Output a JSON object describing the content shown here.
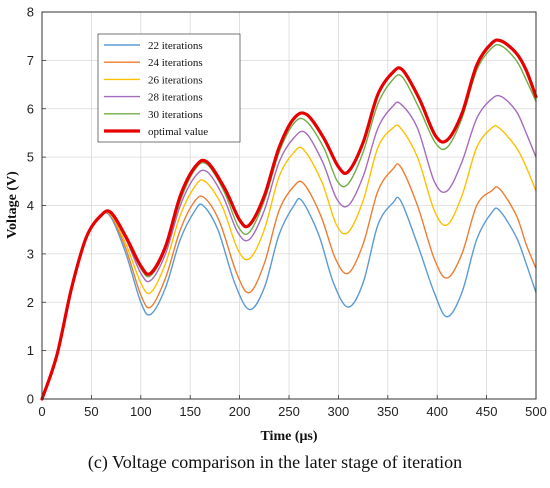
{
  "chart_data": {
    "type": "line",
    "xlabel": "Time (μs)",
    "ylabel": "Voltage (V)",
    "xlim": [
      0,
      500
    ],
    "ylim": [
      0,
      8
    ],
    "xticks": [
      "0",
      "50",
      "100",
      "150",
      "200",
      "250",
      "300",
      "350",
      "400",
      "450",
      "500"
    ],
    "yticks": [
      "0",
      "1",
      "2",
      "3",
      "4",
      "5",
      "6",
      "7",
      "8"
    ],
    "grid": true,
    "legend_position": "top-left",
    "series": [
      {
        "name": "22 iterations",
        "color": "#5b9bd5",
        "width": 1.4,
        "points": [
          [
            0,
            0
          ],
          [
            15,
            0.9
          ],
          [
            30,
            2.3
          ],
          [
            45,
            3.35
          ],
          [
            60,
            3.8
          ],
          [
            70,
            3.75
          ],
          [
            85,
            3.0
          ],
          [
            100,
            2.0
          ],
          [
            110,
            1.75
          ],
          [
            125,
            2.3
          ],
          [
            140,
            3.3
          ],
          [
            155,
            3.9
          ],
          [
            163,
            4.0
          ],
          [
            178,
            3.5
          ],
          [
            195,
            2.4
          ],
          [
            210,
            1.85
          ],
          [
            225,
            2.3
          ],
          [
            240,
            3.4
          ],
          [
            255,
            4.0
          ],
          [
            263,
            4.1
          ],
          [
            280,
            3.4
          ],
          [
            295,
            2.4
          ],
          [
            310,
            1.9
          ],
          [
            325,
            2.4
          ],
          [
            340,
            3.6
          ],
          [
            355,
            4.05
          ],
          [
            363,
            4.1
          ],
          [
            380,
            3.2
          ],
          [
            397,
            2.2
          ],
          [
            410,
            1.7
          ],
          [
            425,
            2.2
          ],
          [
            440,
            3.3
          ],
          [
            455,
            3.85
          ],
          [
            463,
            3.9
          ],
          [
            480,
            3.35
          ],
          [
            490,
            2.8
          ],
          [
            500,
            2.2
          ]
        ]
      },
      {
        "name": "24 iterations",
        "color": "#ed7d31",
        "width": 1.4,
        "points": [
          [
            0,
            0
          ],
          [
            15,
            0.9
          ],
          [
            30,
            2.3
          ],
          [
            45,
            3.35
          ],
          [
            60,
            3.8
          ],
          [
            70,
            3.78
          ],
          [
            85,
            3.1
          ],
          [
            100,
            2.15
          ],
          [
            110,
            1.9
          ],
          [
            125,
            2.5
          ],
          [
            140,
            3.5
          ],
          [
            155,
            4.1
          ],
          [
            165,
            4.15
          ],
          [
            180,
            3.65
          ],
          [
            197,
            2.6
          ],
          [
            210,
            2.2
          ],
          [
            225,
            2.8
          ],
          [
            240,
            3.9
          ],
          [
            255,
            4.4
          ],
          [
            265,
            4.45
          ],
          [
            282,
            3.8
          ],
          [
            297,
            2.9
          ],
          [
            310,
            2.6
          ],
          [
            325,
            3.2
          ],
          [
            340,
            4.3
          ],
          [
            355,
            4.75
          ],
          [
            363,
            4.8
          ],
          [
            380,
            4.0
          ],
          [
            397,
            2.9
          ],
          [
            410,
            2.5
          ],
          [
            425,
            3.0
          ],
          [
            440,
            4.0
          ],
          [
            455,
            4.3
          ],
          [
            463,
            4.35
          ],
          [
            480,
            3.8
          ],
          [
            490,
            3.2
          ],
          [
            500,
            2.7
          ]
        ]
      },
      {
        "name": "26 iterations",
        "color": "#ffc000",
        "width": 1.4,
        "points": [
          [
            0,
            0
          ],
          [
            15,
            0.9
          ],
          [
            30,
            2.3
          ],
          [
            45,
            3.35
          ],
          [
            60,
            3.8
          ],
          [
            70,
            3.8
          ],
          [
            85,
            3.2
          ],
          [
            100,
            2.4
          ],
          [
            110,
            2.2
          ],
          [
            125,
            2.8
          ],
          [
            140,
            3.8
          ],
          [
            155,
            4.4
          ],
          [
            165,
            4.5
          ],
          [
            182,
            4.0
          ],
          [
            198,
            3.1
          ],
          [
            210,
            2.9
          ],
          [
            225,
            3.5
          ],
          [
            240,
            4.6
          ],
          [
            255,
            5.1
          ],
          [
            265,
            5.15
          ],
          [
            283,
            4.5
          ],
          [
            298,
            3.6
          ],
          [
            310,
            3.45
          ],
          [
            325,
            4.1
          ],
          [
            340,
            5.2
          ],
          [
            355,
            5.6
          ],
          [
            363,
            5.6
          ],
          [
            380,
            5.0
          ],
          [
            397,
            3.9
          ],
          [
            410,
            3.6
          ],
          [
            425,
            4.2
          ],
          [
            440,
            5.2
          ],
          [
            455,
            5.6
          ],
          [
            463,
            5.6
          ],
          [
            480,
            5.2
          ],
          [
            490,
            4.8
          ],
          [
            500,
            4.3
          ]
        ]
      },
      {
        "name": "28 iterations",
        "color": "#a66bbe",
        "width": 1.4,
        "points": [
          [
            0,
            0
          ],
          [
            15,
            0.9
          ],
          [
            30,
            2.3
          ],
          [
            45,
            3.35
          ],
          [
            60,
            3.8
          ],
          [
            70,
            3.82
          ],
          [
            85,
            3.3
          ],
          [
            100,
            2.6
          ],
          [
            110,
            2.45
          ],
          [
            125,
            3.0
          ],
          [
            140,
            4.0
          ],
          [
            155,
            4.6
          ],
          [
            167,
            4.7
          ],
          [
            183,
            4.2
          ],
          [
            198,
            3.45
          ],
          [
            210,
            3.3
          ],
          [
            225,
            3.9
          ],
          [
            240,
            4.9
          ],
          [
            255,
            5.4
          ],
          [
            267,
            5.5
          ],
          [
            284,
            4.9
          ],
          [
            298,
            4.15
          ],
          [
            310,
            4.0
          ],
          [
            325,
            4.6
          ],
          [
            340,
            5.6
          ],
          [
            355,
            6.05
          ],
          [
            363,
            6.1
          ],
          [
            380,
            5.6
          ],
          [
            397,
            4.5
          ],
          [
            410,
            4.3
          ],
          [
            425,
            4.9
          ],
          [
            440,
            5.8
          ],
          [
            455,
            6.2
          ],
          [
            465,
            6.25
          ],
          [
            480,
            5.95
          ],
          [
            490,
            5.5
          ],
          [
            500,
            5.0
          ]
        ]
      },
      {
        "name": "30 iterations",
        "color": "#70ad47",
        "width": 1.4,
        "points": [
          [
            0,
            0
          ],
          [
            15,
            0.9
          ],
          [
            30,
            2.3
          ],
          [
            45,
            3.35
          ],
          [
            60,
            3.8
          ],
          [
            70,
            3.84
          ],
          [
            85,
            3.35
          ],
          [
            100,
            2.7
          ],
          [
            110,
            2.55
          ],
          [
            125,
            3.1
          ],
          [
            140,
            4.1
          ],
          [
            155,
            4.75
          ],
          [
            167,
            4.85
          ],
          [
            184,
            4.3
          ],
          [
            199,
            3.55
          ],
          [
            210,
            3.45
          ],
          [
            225,
            4.1
          ],
          [
            240,
            5.1
          ],
          [
            255,
            5.7
          ],
          [
            267,
            5.75
          ],
          [
            285,
            5.2
          ],
          [
            299,
            4.5
          ],
          [
            310,
            4.45
          ],
          [
            325,
            5.1
          ],
          [
            340,
            6.1
          ],
          [
            355,
            6.6
          ],
          [
            365,
            6.65
          ],
          [
            382,
            6.0
          ],
          [
            398,
            5.3
          ],
          [
            410,
            5.2
          ],
          [
            425,
            5.8
          ],
          [
            440,
            6.8
          ],
          [
            455,
            7.25
          ],
          [
            465,
            7.3
          ],
          [
            480,
            7.0
          ],
          [
            490,
            6.6
          ],
          [
            500,
            6.15
          ]
        ]
      },
      {
        "name": "optimal value",
        "color": "#e60000",
        "width": 3.2,
        "points": [
          [
            0,
            0
          ],
          [
            15,
            0.9
          ],
          [
            30,
            2.3
          ],
          [
            45,
            3.35
          ],
          [
            60,
            3.8
          ],
          [
            70,
            3.85
          ],
          [
            85,
            3.35
          ],
          [
            100,
            2.75
          ],
          [
            110,
            2.6
          ],
          [
            125,
            3.15
          ],
          [
            140,
            4.2
          ],
          [
            155,
            4.8
          ],
          [
            167,
            4.9
          ],
          [
            185,
            4.35
          ],
          [
            200,
            3.7
          ],
          [
            210,
            3.6
          ],
          [
            225,
            4.2
          ],
          [
            240,
            5.2
          ],
          [
            255,
            5.8
          ],
          [
            268,
            5.88
          ],
          [
            285,
            5.4
          ],
          [
            300,
            4.8
          ],
          [
            310,
            4.7
          ],
          [
            325,
            5.3
          ],
          [
            340,
            6.3
          ],
          [
            355,
            6.75
          ],
          [
            365,
            6.8
          ],
          [
            382,
            6.2
          ],
          [
            398,
            5.45
          ],
          [
            410,
            5.35
          ],
          [
            425,
            5.9
          ],
          [
            440,
            6.9
          ],
          [
            455,
            7.35
          ],
          [
            465,
            7.4
          ],
          [
            480,
            7.15
          ],
          [
            490,
            6.8
          ],
          [
            500,
            6.25
          ]
        ]
      }
    ]
  },
  "caption": "(c) Voltage comparison in the later stage of iteration"
}
